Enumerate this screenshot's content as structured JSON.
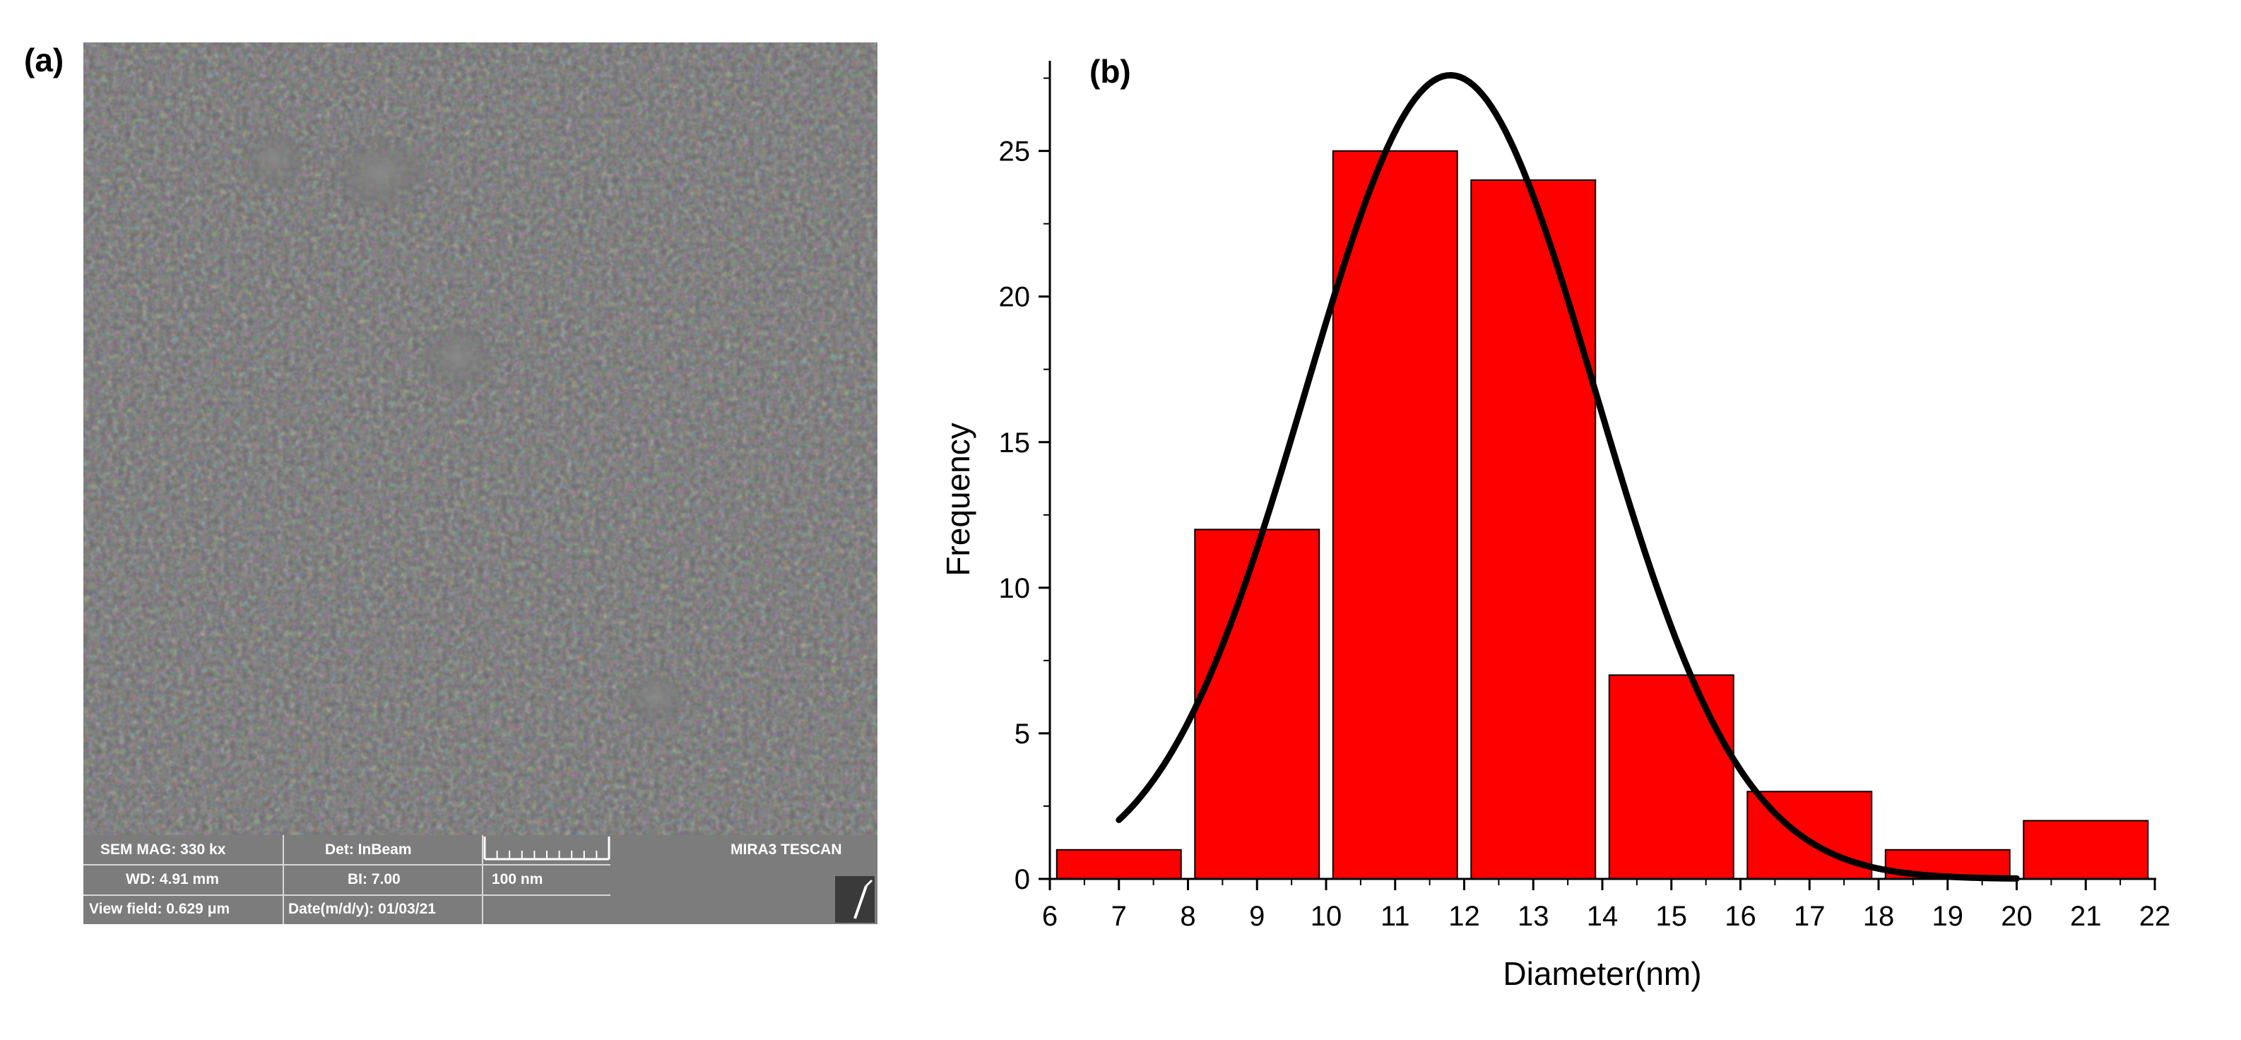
{
  "panels": {
    "a_label": "(a)",
    "b_label": "(b)"
  },
  "sem_info": {
    "row1": {
      "mag": "SEM MAG: 330 kx",
      "det": "Det: InBeam",
      "brand": "MIRA3 TESCAN"
    },
    "row2": {
      "wd": "WD: 4.91 mm",
      "bi": "BI: 7.00",
      "scale": "100 nm"
    },
    "row3": {
      "view_field": "View field: 0.629 μm",
      "date": "Date(m/d/y): 01/03/21"
    }
  },
  "chart_data": {
    "type": "bar",
    "xlabel": "Diameter(nm)",
    "ylabel": "Frequency",
    "xlim": [
      6,
      22
    ],
    "ylim": [
      0,
      28
    ],
    "x_ticks": [
      6,
      7,
      8,
      9,
      10,
      11,
      12,
      13,
      14,
      15,
      16,
      17,
      18,
      19,
      20,
      21,
      22
    ],
    "y_ticks": [
      0,
      5,
      10,
      15,
      20,
      25
    ],
    "bins": [
      {
        "center": 7,
        "value": 1
      },
      {
        "center": 9,
        "value": 12
      },
      {
        "center": 11,
        "value": 25
      },
      {
        "center": 13,
        "value": 24
      },
      {
        "center": 15,
        "value": 7
      },
      {
        "center": 17,
        "value": 3
      },
      {
        "center": 19,
        "value": 1
      },
      {
        "center": 21,
        "value": 2
      }
    ],
    "bin_width": 2,
    "fit": {
      "type": "gaussian",
      "amplitude": 27.6,
      "mean": 11.8,
      "sigma": 2.1,
      "x_range": [
        7,
        20
      ]
    },
    "bar_color": "#ff0000",
    "curve_color": "#000000"
  }
}
